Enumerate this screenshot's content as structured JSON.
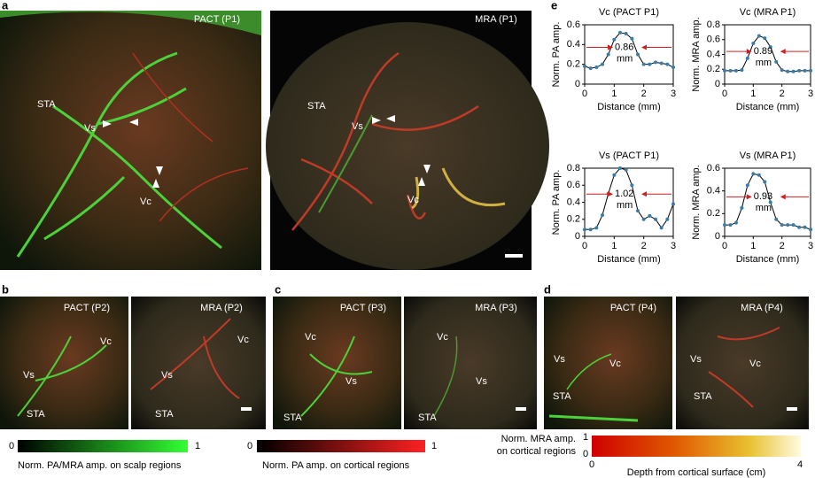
{
  "panel_labels": [
    "a",
    "b",
    "c",
    "d",
    "e"
  ],
  "images": [
    {
      "title": "PACT (P1)",
      "tags": [
        "STA",
        "Vs",
        "Vc"
      ]
    },
    {
      "title": "MRA (P1)",
      "tags": [
        "STA",
        "Vs",
        "Vc"
      ]
    },
    {
      "title": "PACT (P2)",
      "tags": [
        "Vc",
        "Vs",
        "STA"
      ]
    },
    {
      "title": "MRA (P2)",
      "tags": [
        "Vc",
        "Vs",
        "STA"
      ]
    },
    {
      "title": "PACT (P3)",
      "tags": [
        "Vc",
        "Vs",
        "STA"
      ]
    },
    {
      "title": "MRA (P3)",
      "tags": [
        "Vc",
        "Vs",
        "STA"
      ]
    },
    {
      "title": "PACT (P4)",
      "tags": [
        "Vs",
        "Vc",
        "STA"
      ]
    },
    {
      "title": "MRA (P4)",
      "tags": [
        "Vs",
        "Vc",
        "STA"
      ]
    }
  ],
  "colorbars": [
    {
      "label": "Norm. PA/MRA amp. on scalp regions",
      "ticks": [
        0,
        1
      ]
    },
    {
      "label": "Norm. PA amp. on cortical regions",
      "ticks": [
        0,
        1
      ]
    },
    {
      "label_lines": [
        "Norm. MRA amp.",
        "on cortical regions"
      ],
      "side_ticks": [
        1,
        0
      ],
      "ticks": [
        0,
        4
      ],
      "xlabel": "Depth from cortical surface (cm)"
    }
  ],
  "chart_data": [
    {
      "type": "line",
      "title": "Vc (PACT P1)",
      "xlabel": "Distance (mm)",
      "ylabel": "Norm. PA amp.",
      "x": [
        0,
        0.2,
        0.4,
        0.6,
        0.8,
        1.0,
        1.2,
        1.4,
        1.6,
        1.8,
        2.0,
        2.2,
        2.4,
        2.6,
        2.8,
        3.0
      ],
      "values": [
        0.18,
        0.16,
        0.17,
        0.2,
        0.3,
        0.45,
        0.52,
        0.51,
        0.46,
        0.3,
        0.2,
        0.2,
        0.22,
        0.21,
        0.2,
        0.17
      ],
      "xlim": [
        0,
        3
      ],
      "xticks": [
        0,
        1,
        2,
        3
      ],
      "ylim": [
        0,
        0.6
      ],
      "yticks": [
        0,
        0.2,
        0.4,
        0.6
      ],
      "annotation": [
        "0.86",
        "mm"
      ],
      "line_color": "#000000",
      "marker_color": "#3a7ca5"
    },
    {
      "type": "line",
      "title": "Vc (MRA P1)",
      "xlabel": "Distance (mm)",
      "ylabel": "Norm. MRA amp.",
      "x": [
        0,
        0.2,
        0.4,
        0.6,
        0.8,
        1.0,
        1.2,
        1.4,
        1.6,
        1.8,
        2.0,
        2.2,
        2.4,
        2.6,
        2.8,
        3.0
      ],
      "values": [
        0.18,
        0.18,
        0.18,
        0.19,
        0.35,
        0.55,
        0.65,
        0.62,
        0.5,
        0.3,
        0.19,
        0.17,
        0.17,
        0.18,
        0.18,
        0.18
      ],
      "xlim": [
        0,
        3
      ],
      "xticks": [
        0,
        1,
        2,
        3
      ],
      "ylim": [
        0,
        0.8
      ],
      "yticks": [
        0,
        0.2,
        0.4,
        0.6,
        0.8
      ],
      "annotation": [
        "0.89",
        "mm"
      ],
      "line_color": "#000000",
      "marker_color": "#3a7ca5"
    },
    {
      "type": "line",
      "title": "Vs (PACT P1)",
      "xlabel": "Distance (mm)",
      "ylabel": "Norm. PA amp.",
      "x": [
        0,
        0.2,
        0.4,
        0.6,
        0.8,
        1.0,
        1.2,
        1.4,
        1.6,
        1.8,
        2.0,
        2.2,
        2.4,
        2.6,
        2.8,
        3.0
      ],
      "values": [
        0.08,
        0.08,
        0.1,
        0.25,
        0.5,
        0.72,
        0.8,
        0.78,
        0.6,
        0.3,
        0.2,
        0.24,
        0.2,
        0.1,
        0.2,
        0.38
      ],
      "xlim": [
        0,
        3
      ],
      "xticks": [
        0,
        1,
        2,
        3
      ],
      "ylim": [
        0,
        0.8
      ],
      "yticks": [
        0,
        0.2,
        0.4,
        0.6,
        0.8
      ],
      "annotation": [
        "1.02",
        "mm"
      ],
      "line_color": "#000000",
      "marker_color": "#3a7ca5"
    },
    {
      "type": "line",
      "title": "Vs (MRA P1)",
      "xlabel": "Distance (mm)",
      "ylabel": "Norm. MRA amp.",
      "x": [
        0,
        0.2,
        0.4,
        0.6,
        0.8,
        1.0,
        1.2,
        1.4,
        1.6,
        1.8,
        2.0,
        2.2,
        2.4,
        2.6,
        2.8,
        3.0
      ],
      "values": [
        0.1,
        0.1,
        0.12,
        0.25,
        0.45,
        0.55,
        0.54,
        0.48,
        0.3,
        0.15,
        0.1,
        0.1,
        0.1,
        0.08,
        0.08,
        0.06
      ],
      "xlim": [
        0,
        3
      ],
      "xticks": [
        0,
        1,
        2,
        3
      ],
      "ylim": [
        0,
        0.6
      ],
      "yticks": [
        0,
        0.2,
        0.4,
        0.6
      ],
      "annotation": [
        "0.93",
        "mm"
      ],
      "line_color": "#000000",
      "marker_color": "#3a7ca5"
    }
  ]
}
